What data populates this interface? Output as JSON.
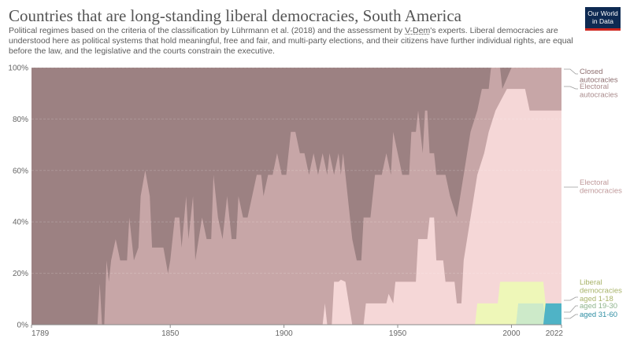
{
  "header": {
    "title": "Countries that are long-standing liberal democracies, South America",
    "subtitle_pre": "Political regimes based on the criteria of the classification by Lührmann et al. (2018) and the assessment by ",
    "subtitle_link": "V-Dem",
    "subtitle_post": "'s experts. Liberal democracies are understood here as political systems that hold meaningful, free and fair, and multi-party elections, and their citizens have further individual rights, are equal before the law, and the legislative and the courts constrain the executive.",
    "logo_line1": "Our World",
    "logo_line2": "in Data"
  },
  "colors": {
    "closed": "#9c8182",
    "electoral_autocracies": "#c7a6a7",
    "electoral_democracies": "#f5d7d7",
    "liberal_1_18": "#eef7b8",
    "liberal_19_30": "#cdeac9",
    "liberal_31_60": "#4fb3c6",
    "label_closed": "#8e6f70",
    "label_autoc": "#a98b8c",
    "label_elec": "#c09a9b",
    "label_lib": "#a8b36a",
    "label_19": "#90b58e",
    "label_31": "#2f8ea3"
  },
  "legend": {
    "closed": [
      "Closed",
      "autocracies"
    ],
    "electoral_autocracies": [
      "Electoral",
      "autocracies"
    ],
    "electoral_democracies": [
      "Electoral",
      "democracies"
    ],
    "liberal": [
      "Liberal",
      "democracies",
      "aged 1-18"
    ],
    "aged_19_30": "aged 19-30",
    "aged_31_60": "aged 31-60"
  },
  "chart_data": {
    "type": "area",
    "stacked": true,
    "percent": true,
    "n_countries": 12,
    "xlim": [
      1789,
      2022
    ],
    "ylim": [
      0,
      100
    ],
    "x_ticks": [
      "1789",
      "1850",
      "1900",
      "1950",
      "2000",
      "2022"
    ],
    "y_ticks": [
      "0%",
      "20%",
      "40%",
      "60%",
      "80%",
      "100%"
    ],
    "series": [
      {
        "name": "Liberal democracies aged 31-60",
        "key": "liberal_31_60",
        "points": [
          [
            2014,
            0
          ],
          [
            2015,
            8.3
          ],
          [
            2022,
            8.3
          ]
        ]
      },
      {
        "name": "Liberal democracies aged 19-30",
        "key": "liberal_19_30",
        "points": [
          [
            2002,
            0
          ],
          [
            2003,
            8.3
          ],
          [
            2014,
            8.3
          ],
          [
            2015,
            0
          ],
          [
            2022,
            0
          ]
        ]
      },
      {
        "name": "Liberal democracies aged 1-18",
        "key": "liberal_1_18",
        "points": [
          [
            1984,
            0
          ],
          [
            1985,
            8.3
          ],
          [
            1994,
            8.3
          ],
          [
            1995,
            16.7
          ],
          [
            2014,
            16.7
          ],
          [
            2015,
            8.3
          ],
          [
            2022,
            8.3
          ]
        ]
      },
      {
        "name": "Electoral democracies",
        "key": "electoral_democracies",
        "points": [
          [
            1917,
            0
          ],
          [
            1918,
            8.3
          ],
          [
            1919,
            0
          ],
          [
            1921,
            0
          ],
          [
            1922,
            16.7
          ],
          [
            1924,
            16.7
          ],
          [
            1925,
            17.5
          ],
          [
            1927,
            16.7
          ],
          [
            1930,
            0
          ],
          [
            1935,
            0
          ],
          [
            1936,
            8.3
          ],
          [
            1945,
            8.3
          ],
          [
            1946,
            12
          ],
          [
            1948,
            8.3
          ],
          [
            1949,
            16.7
          ],
          [
            1952,
            16.7
          ],
          [
            1958,
            16.7
          ],
          [
            1959,
            33.3
          ],
          [
            1963,
            33.3
          ],
          [
            1964,
            41.7
          ],
          [
            1966,
            41.7
          ],
          [
            1967,
            25
          ],
          [
            1970,
            25
          ],
          [
            1971,
            16.7
          ],
          [
            1975,
            16.7
          ],
          [
            1976,
            8.3
          ],
          [
            1978,
            8.3
          ],
          [
            1979,
            25
          ],
          [
            1982,
            41.7
          ],
          [
            1985,
            58.3
          ],
          [
            1988,
            66.7
          ],
          [
            1990,
            75
          ],
          [
            1993,
            83.3
          ],
          [
            1998,
            91.7
          ],
          [
            2006,
            91.7
          ],
          [
            2008,
            83.3
          ],
          [
            2022,
            83.3
          ]
        ]
      },
      {
        "name": "Electoral autocracies",
        "key": "electoral_autocracies",
        "points": [
          [
            1789,
            0
          ],
          [
            1818,
            0
          ],
          [
            1819,
            16
          ],
          [
            1820,
            0
          ],
          [
            1821,
            0
          ],
          [
            1822,
            25
          ],
          [
            1823,
            16.7
          ],
          [
            1824,
            25
          ],
          [
            1826,
            33.3
          ],
          [
            1828,
            25
          ],
          [
            1831,
            25
          ],
          [
            1832,
            41.7
          ],
          [
            1834,
            25
          ],
          [
            1836,
            30
          ],
          [
            1837,
            50
          ],
          [
            1839,
            60
          ],
          [
            1841,
            50
          ],
          [
            1842,
            30
          ],
          [
            1847,
            30
          ],
          [
            1848,
            25
          ],
          [
            1849,
            20
          ],
          [
            1850,
            25
          ],
          [
            1852,
            41.7
          ],
          [
            1854,
            41.7
          ],
          [
            1855,
            30
          ],
          [
            1857,
            50
          ],
          [
            1858,
            33.3
          ],
          [
            1860,
            50
          ],
          [
            1861,
            25
          ],
          [
            1864,
            41.7
          ],
          [
            1866,
            33.3
          ],
          [
            1868,
            33.3
          ],
          [
            1869,
            58.3
          ],
          [
            1871,
            41.7
          ],
          [
            1873,
            33.3
          ],
          [
            1875,
            50
          ],
          [
            1877,
            33.3
          ],
          [
            1879,
            33.3
          ],
          [
            1880,
            50
          ],
          [
            1882,
            41.7
          ],
          [
            1884,
            41.7
          ],
          [
            1886,
            50
          ],
          [
            1888,
            58.3
          ],
          [
            1890,
            58.3
          ],
          [
            1891,
            50
          ],
          [
            1893,
            58.3
          ],
          [
            1895,
            58.3
          ],
          [
            1897,
            66.7
          ],
          [
            1899,
            58.3
          ],
          [
            1901,
            58.3
          ],
          [
            1903,
            75
          ],
          [
            1905,
            75
          ],
          [
            1907,
            66.7
          ],
          [
            1909,
            66.7
          ],
          [
            1911,
            58.3
          ],
          [
            1913,
            66.7
          ],
          [
            1915,
            58.3
          ],
          [
            1917,
            66.7
          ],
          [
            1919,
            58.3
          ],
          [
            1920,
            66.7
          ],
          [
            1922,
            58.3
          ],
          [
            1924,
            66.7
          ],
          [
            1925,
            58.3
          ],
          [
            1926,
            66.7
          ],
          [
            1928,
            50
          ],
          [
            1930,
            33.3
          ],
          [
            1932,
            25
          ],
          [
            1934,
            25
          ],
          [
            1935,
            41.7
          ],
          [
            1938,
            41.7
          ],
          [
            1940,
            58.3
          ],
          [
            1943,
            58.3
          ],
          [
            1945,
            66.7
          ],
          [
            1947,
            58.3
          ],
          [
            1948,
            75
          ],
          [
            1950,
            66.7
          ],
          [
            1952,
            58.3
          ],
          [
            1955,
            58.3
          ],
          [
            1956,
            75
          ],
          [
            1958,
            75
          ],
          [
            1959,
            83.3
          ],
          [
            1961,
            66.7
          ],
          [
            1962,
            83.3
          ],
          [
            1963,
            83.3
          ],
          [
            1964,
            66.7
          ],
          [
            1966,
            66.7
          ],
          [
            1967,
            58.3
          ],
          [
            1970,
            58.3
          ],
          [
            1971,
            58.3
          ],
          [
            1973,
            50
          ],
          [
            1976,
            41.7
          ],
          [
            1979,
            58.3
          ],
          [
            1982,
            75
          ],
          [
            1985,
            83.3
          ],
          [
            1987,
            91.7
          ],
          [
            1990,
            91.7
          ],
          [
            1991,
            100
          ],
          [
            1995,
            100
          ],
          [
            1996,
            91.7
          ],
          [
            2000,
            100
          ],
          [
            2022,
            100
          ]
        ]
      },
      {
        "name": "Closed autocracies",
        "key": "closed",
        "points": [
          [
            1789,
            100
          ],
          [
            2022,
            100
          ]
        ]
      }
    ]
  }
}
